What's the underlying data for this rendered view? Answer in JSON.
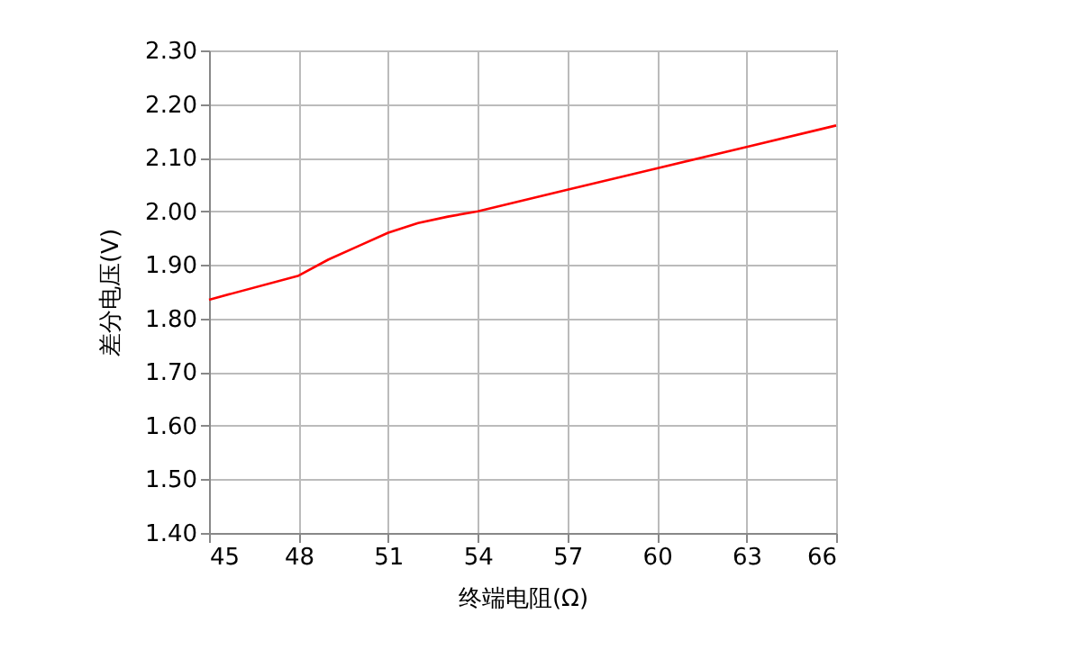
{
  "chart_data": {
    "type": "line",
    "xlabel": "终端电阻(Ω)",
    "ylabel": "差分电压(V)",
    "x": [
      45,
      48,
      49,
      50,
      51,
      52,
      53,
      54,
      57,
      60,
      63,
      66
    ],
    "series": [
      {
        "color": "#ff0000",
        "values": [
          1.835,
          1.88,
          1.91,
          1.935,
          1.96,
          1.978,
          1.99,
          2.0,
          2.04,
          2.08,
          2.12,
          2.16
        ]
      }
    ],
    "xlim": [
      45,
      66
    ],
    "xticks": [
      45,
      48,
      51,
      54,
      57,
      60,
      63,
      66
    ],
    "ylim": [
      1.4,
      2.3
    ],
    "yticks": [
      {
        "value": 1.4,
        "label": "1.40"
      },
      {
        "value": 1.5,
        "label": "1.50"
      },
      {
        "value": 1.6,
        "label": "1.60"
      },
      {
        "value": 1.7,
        "label": "1.70"
      },
      {
        "value": 1.8,
        "label": "1.80"
      },
      {
        "value": 1.9,
        "label": "1.90"
      },
      {
        "value": 2.0,
        "label": "2.00"
      },
      {
        "value": 2.1,
        "label": "2.10"
      },
      {
        "value": 2.2,
        "label": "2.20"
      },
      {
        "value": 2.3,
        "label": "2.30"
      }
    ],
    "grid": true,
    "marker": "none",
    "line_style": "solid"
  }
}
